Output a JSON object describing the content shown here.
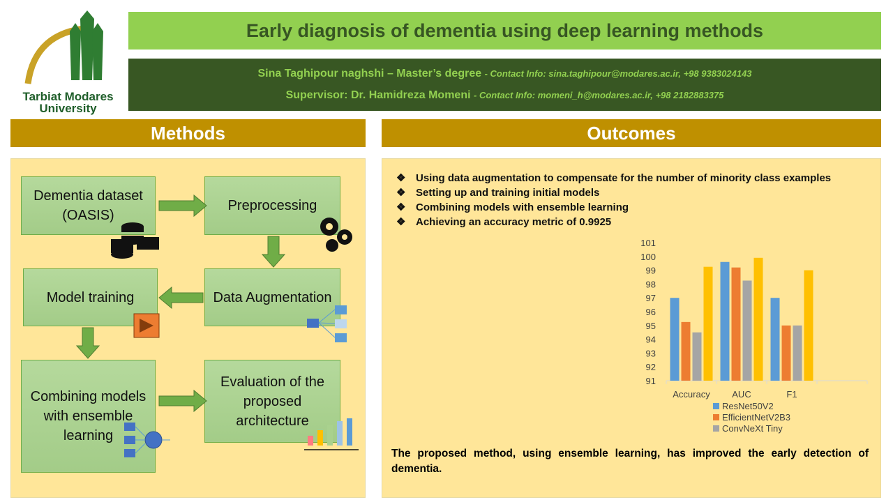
{
  "logo": {
    "text": "Tarbiat Modares University",
    "line1": "Tarbiat Modares",
    "line2": "University"
  },
  "title": "Early diagnosis of dementia using deep learning methods",
  "info": {
    "student": "Sina Taghipour naghshi – Master’s degree",
    "student_contact": "- Contact Info: sina.taghipour@modares.ac.ir, +98 9383024143",
    "supervisor": "Supervisor: Dr. Hamidreza Momeni",
    "supervisor_contact": "- Contact Info: momeni_h@modares.ac.ir, +98 2182883375"
  },
  "methods": {
    "header": "Methods",
    "steps": [
      "Dementia dataset (OASIS)",
      "Preprocessing",
      "Data Augmentation",
      "Model training",
      "Combining models with ensemble learning",
      "Evaluation of the proposed architecture"
    ]
  },
  "outcomes": {
    "header": "Outcomes",
    "bullet_icon": "diamond-bullet",
    "bullets": [
      "Using data augmentation to compensate for the number of minority class examples",
      "Setting up and training initial models",
      "Combining models with ensemble learning",
      "Achieving an accuracy metric of 0.9925"
    ],
    "conclusion": "The proposed method, using ensemble learning, has improved the early detection of dementia."
  },
  "colors": {
    "title_bg": "#92d050",
    "info_bg": "#385723",
    "header_bg": "#bf9000",
    "panel_bg": "#ffe699",
    "box": "#a9d18e"
  },
  "chart_data": {
    "type": "bar",
    "categories": [
      "Accuracy",
      "AUC",
      "F1",
      ""
    ],
    "ylim": [
      91,
      101
    ],
    "yticks": [
      91,
      92,
      93,
      94,
      95,
      96,
      97,
      98,
      99,
      100,
      101
    ],
    "grid": false,
    "legend": "bottom",
    "series": [
      {
        "name": "ResNet50V2",
        "color": "#5b9bd5",
        "values": [
          97,
          99.6,
          97,
          null
        ]
      },
      {
        "name": "EfficientNetV2B3",
        "color": "#ed7d31",
        "values": [
          95.25,
          99.2,
          95,
          null
        ]
      },
      {
        "name": "ConvNeXt Tiny",
        "color": "#a5a5a5",
        "values": [
          94.5,
          98.25,
          95,
          null
        ]
      },
      {
        "color": "#ffc000",
        "values": [
          99.25,
          99.9,
          99,
          null
        ]
      }
    ]
  }
}
